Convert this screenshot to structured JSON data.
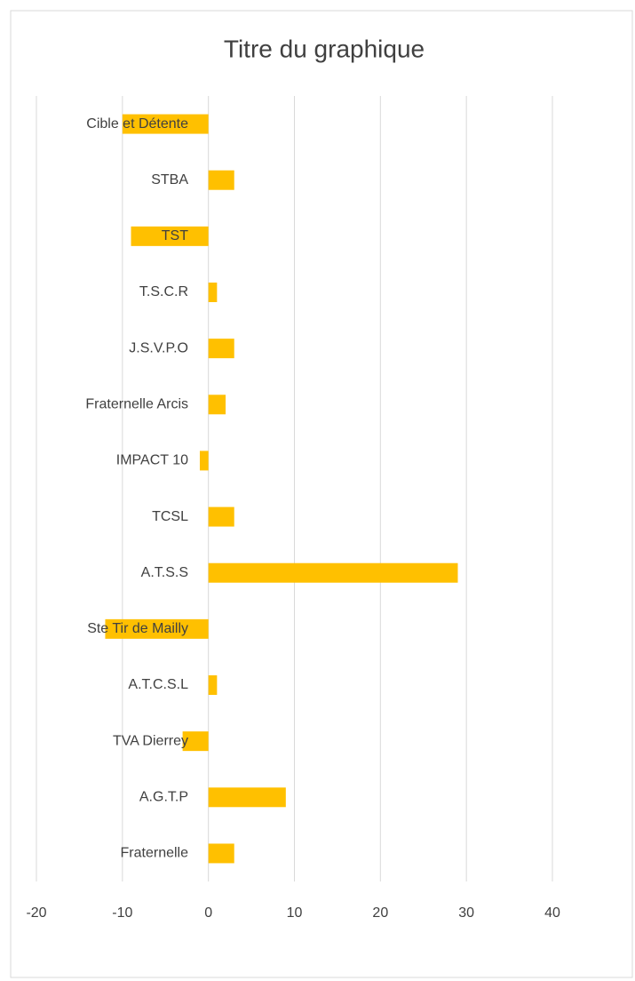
{
  "chart_data": {
    "type": "bar",
    "orientation": "horizontal",
    "title": "Titre du graphique",
    "categories": [
      "Cible et Détente",
      "STBA",
      "TST",
      "T.S.C.R",
      "J.S.V.P.O",
      "Fraternelle Arcis",
      "IMPACT 10",
      "TCSL",
      "A.T.S.S",
      "Ste Tir de Mailly",
      "A.T.C.S.L",
      "TVA Dierrey",
      "A.G.T.P",
      "Fraternelle"
    ],
    "values": [
      -10,
      3,
      -9,
      1,
      3,
      2,
      -1,
      3,
      29,
      -12,
      1,
      -3,
      9,
      3
    ],
    "color": "#ffc000",
    "xlim": [
      -20,
      40
    ],
    "xticks": [
      -20,
      -10,
      0,
      10,
      20,
      30,
      40
    ],
    "grid": true
  }
}
